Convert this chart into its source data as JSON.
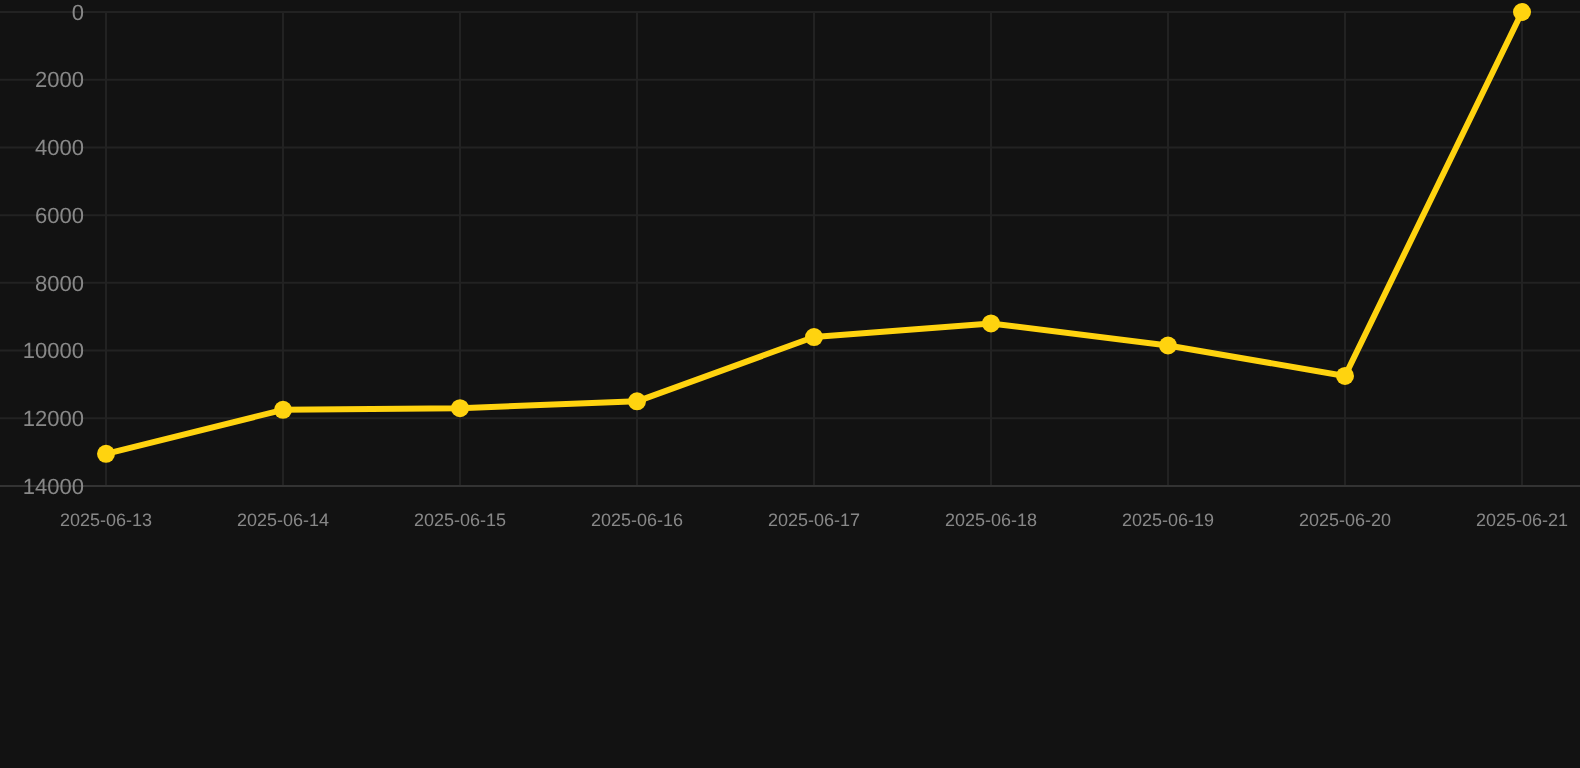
{
  "chart_data": {
    "type": "line",
    "categories": [
      "2025-06-13",
      "2025-06-14",
      "2025-06-15",
      "2025-06-16",
      "2025-06-17",
      "2025-06-18",
      "2025-06-19",
      "2025-06-20",
      "2025-06-21"
    ],
    "series": [
      {
        "color": "#ffd30f",
        "values": [
          13050,
          11750,
          11700,
          11500,
          9600,
          9200,
          9850,
          10750,
          0
        ]
      }
    ],
    "ylim": [
      14000,
      0
    ],
    "yticks": [
      0,
      2000,
      4000,
      6000,
      8000,
      10000,
      12000,
      14000
    ],
    "grid": true,
    "marker": "circle",
    "line_style": "solid"
  }
}
